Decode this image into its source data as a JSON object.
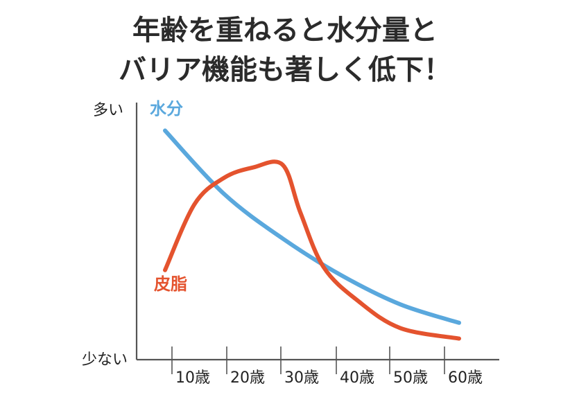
{
  "title_lines": [
    "年齢を重ねると水分量と",
    "バリア機能も著しく低下！"
  ],
  "colors": {
    "water": "#5aa8dd",
    "sebum": "#e4532e",
    "axis": "#555555",
    "text": "#222222"
  },
  "chart_data": {
    "type": "line",
    "title": "年齢を重ねると水分量とバリア機能も著しく低下！",
    "xlabel": "",
    "ylabel": "",
    "y_top_label": "多い",
    "y_bottom_label": "少ない",
    "categories": [
      "10歳",
      "20歳",
      "30歳",
      "40歳",
      "50歳",
      "60歳"
    ],
    "ylim": [
      0,
      100
    ],
    "series": [
      {
        "name": "水分",
        "key": "water",
        "x": [
          0,
          10,
          20,
          30,
          40,
          50
        ],
        "values": [
          87,
          63,
          46,
          32,
          21,
          14
        ]
      },
      {
        "name": "皮脂",
        "key": "sebum",
        "x": [
          0,
          5,
          10,
          15,
          20,
          23,
          27,
          33,
          40,
          50
        ],
        "values": [
          34,
          59,
          69,
          73,
          74,
          56,
          35,
          22,
          12,
          8
        ]
      }
    ],
    "grid": false,
    "legend": "inline labels"
  }
}
